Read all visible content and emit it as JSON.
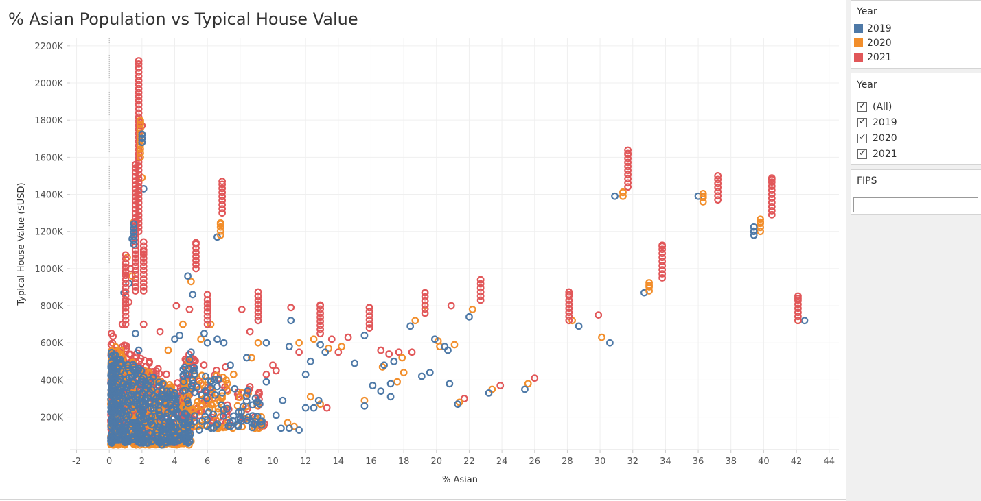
{
  "chart_data": {
    "type": "scatter",
    "title": "% Asian Population vs Typical House Value",
    "xlabel": "% Asian",
    "ylabel": "Typical House Value ($USD)",
    "xlim": [
      -2.4,
      44.6
    ],
    "ylim": [
      25000,
      2240000
    ],
    "x_ticks": [
      -2,
      0,
      2,
      4,
      6,
      8,
      10,
      12,
      14,
      16,
      18,
      20,
      22,
      24,
      26,
      28,
      30,
      32,
      34,
      36,
      38,
      40,
      42,
      44
    ],
    "y_ticks": [
      200000,
      400000,
      600000,
      800000,
      1000000,
      1200000,
      1400000,
      1600000,
      1800000,
      2000000,
      2200000
    ],
    "y_tick_labels": [
      "200K",
      "400K",
      "600K",
      "800K",
      "1000K",
      "1200K",
      "1400K",
      "1600K",
      "1800K",
      "2000K",
      "2200K"
    ],
    "grid": true,
    "marker": "open-circle",
    "legend_position": "right",
    "series": [
      {
        "name": "2019",
        "color": "#4e79a7",
        "points": [
          [
            2.0,
            1720000
          ],
          [
            2.1,
            1430000
          ],
          [
            1.5,
            1240000
          ],
          [
            1.4,
            1160000
          ],
          [
            6.6,
            1170000
          ],
          [
            0.9,
            870000
          ],
          [
            1.2,
            920000
          ],
          [
            5.1,
            860000
          ],
          [
            4.8,
            960000
          ],
          [
            11.1,
            720000
          ],
          [
            9.1,
            720000
          ],
          [
            11.0,
            580000
          ],
          [
            9.6,
            600000
          ],
          [
            15.6,
            640000
          ],
          [
            18.4,
            690000
          ],
          [
            19.9,
            620000
          ],
          [
            20.5,
            580000
          ],
          [
            20.7,
            560000
          ],
          [
            22.0,
            740000
          ],
          [
            21.3,
            270000
          ],
          [
            23.2,
            330000
          ],
          [
            25.4,
            350000
          ],
          [
            16.1,
            370000
          ],
          [
            17.2,
            380000
          ],
          [
            17.2,
            310000
          ],
          [
            19.1,
            420000
          ],
          [
            19.6,
            440000
          ],
          [
            16.6,
            340000
          ],
          [
            15.6,
            260000
          ],
          [
            20.8,
            380000
          ],
          [
            28.7,
            690000
          ],
          [
            30.6,
            600000
          ],
          [
            30.9,
            1390000
          ],
          [
            32.7,
            870000
          ],
          [
            36.0,
            1390000
          ],
          [
            39.4,
            1200000
          ],
          [
            42.5,
            720000
          ],
          [
            9.0,
            280000
          ],
          [
            9.2,
            270000
          ],
          [
            9.6,
            390000
          ],
          [
            10.2,
            210000
          ],
          [
            10.6,
            290000
          ],
          [
            10.5,
            140000
          ],
          [
            11.0,
            140000
          ],
          [
            11.6,
            130000
          ],
          [
            12.0,
            250000
          ],
          [
            12.5,
            250000
          ],
          [
            12.0,
            430000
          ],
          [
            12.3,
            500000
          ],
          [
            12.9,
            590000
          ],
          [
            13.2,
            550000
          ],
          [
            12.8,
            290000
          ],
          [
            15.0,
            490000
          ],
          [
            16.8,
            480000
          ],
          [
            17.4,
            500000
          ],
          [
            5.0,
            550000
          ],
          [
            5.8,
            650000
          ],
          [
            6.0,
            600000
          ],
          [
            6.6,
            620000
          ],
          [
            7.0,
            600000
          ],
          [
            4.0,
            620000
          ],
          [
            4.3,
            640000
          ],
          [
            4.9,
            510000
          ],
          [
            7.4,
            480000
          ],
          [
            8.4,
            520000
          ],
          [
            2.0,
            1700000
          ],
          [
            1.6,
            650000
          ],
          [
            1.8,
            560000
          ],
          [
            8.1,
            180000
          ],
          [
            8.5,
            200000
          ],
          [
            8.7,
            170000
          ],
          [
            7.4,
            150000
          ],
          [
            7.9,
            150000
          ],
          [
            5.5,
            130000
          ],
          [
            3.2,
            50000
          ],
          [
            0.6,
            170000
          ]
        ]
      },
      {
        "name": "2020",
        "color": "#f28e2b",
        "points": [
          [
            1.9,
            1790000
          ],
          [
            2.0,
            1490000
          ],
          [
            1.5,
            1250000
          ],
          [
            6.8,
            1240000
          ],
          [
            5.0,
            930000
          ],
          [
            1.4,
            960000
          ],
          [
            18.7,
            720000
          ],
          [
            19.3,
            800000
          ],
          [
            20.1,
            610000
          ],
          [
            20.2,
            580000
          ],
          [
            21.1,
            590000
          ],
          [
            22.2,
            780000
          ],
          [
            21.4,
            280000
          ],
          [
            23.4,
            350000
          ],
          [
            25.6,
            380000
          ],
          [
            28.3,
            720000
          ],
          [
            30.1,
            630000
          ],
          [
            31.4,
            1410000
          ],
          [
            33.0,
            910000
          ],
          [
            36.3,
            1390000
          ],
          [
            39.8,
            1250000
          ],
          [
            42.1,
            720000
          ],
          [
            16.7,
            470000
          ],
          [
            17.9,
            520000
          ],
          [
            18.0,
            440000
          ],
          [
            17.6,
            390000
          ],
          [
            15.6,
            290000
          ],
          [
            11.6,
            600000
          ],
          [
            12.5,
            620000
          ],
          [
            13.4,
            570000
          ],
          [
            14.2,
            580000
          ],
          [
            9.1,
            600000
          ],
          [
            8.7,
            520000
          ],
          [
            7.6,
            430000
          ],
          [
            6.2,
            700000
          ],
          [
            5.6,
            620000
          ],
          [
            4.5,
            700000
          ],
          [
            3.6,
            560000
          ],
          [
            10.9,
            170000
          ],
          [
            11.3,
            150000
          ],
          [
            12.9,
            270000
          ],
          [
            12.3,
            310000
          ],
          [
            1.1,
            1060000
          ]
        ]
      },
      {
        "name": "2021",
        "color": "#e15759",
        "points": [
          [
            1.8,
            2120000
          ],
          [
            2.0,
            1770000
          ],
          [
            1.6,
            1560000
          ],
          [
            2.1,
            1090000
          ],
          [
            6.9,
            1470000
          ],
          [
            5.3,
            1140000
          ],
          [
            6.0,
            860000
          ],
          [
            9.1,
            850000
          ],
          [
            11.1,
            790000
          ],
          [
            12.9,
            800000
          ],
          [
            15.9,
            790000
          ],
          [
            19.3,
            870000
          ],
          [
            20.9,
            800000
          ],
          [
            22.7,
            940000
          ],
          [
            26.0,
            410000
          ],
          [
            28.1,
            860000
          ],
          [
            29.9,
            750000
          ],
          [
            31.7,
            1620000
          ],
          [
            33.8,
            1120000
          ],
          [
            37.2,
            1500000
          ],
          [
            40.5,
            1480000
          ],
          [
            42.1,
            840000
          ],
          [
            17.7,
            550000
          ],
          [
            18.5,
            550000
          ],
          [
            14.6,
            630000
          ],
          [
            13.6,
            620000
          ],
          [
            10.2,
            450000
          ],
          [
            9.6,
            430000
          ],
          [
            3.1,
            660000
          ],
          [
            4.1,
            800000
          ],
          [
            4.9,
            780000
          ],
          [
            8.1,
            780000
          ],
          [
            10.0,
            480000
          ],
          [
            14.0,
            550000
          ],
          [
            16.6,
            560000
          ],
          [
            1.0,
            980000
          ],
          [
            1.3,
            1000000
          ],
          [
            1.6,
            880000
          ],
          [
            0.8,
            700000
          ],
          [
            2.1,
            700000
          ],
          [
            13.3,
            250000
          ],
          [
            23.9,
            370000
          ],
          [
            21.7,
            300000
          ],
          [
            17.1,
            540000
          ],
          [
            8.6,
            660000
          ],
          [
            7.1,
            470000
          ],
          [
            11.6,
            550000
          ],
          [
            1.2,
            820000
          ]
        ]
      }
    ],
    "clusters": [
      {
        "series": "2021",
        "x": [
          0.1,
          5.0
        ],
        "y": [
          60000,
          660000
        ],
        "n": 420
      },
      {
        "series": "2020",
        "x": [
          0.1,
          5.0
        ],
        "y": [
          50000,
          600000
        ],
        "n": 420
      },
      {
        "series": "2019",
        "x": [
          0.1,
          5.0
        ],
        "y": [
          60000,
          560000
        ],
        "n": 460
      },
      {
        "series": "2021",
        "x": [
          4.5,
          9.5
        ],
        "y": [
          150000,
          560000
        ],
        "n": 90
      },
      {
        "series": "2020",
        "x": [
          4.5,
          9.5
        ],
        "y": [
          140000,
          520000
        ],
        "n": 90
      },
      {
        "series": "2019",
        "x": [
          4.5,
          9.5
        ],
        "y": [
          140000,
          500000
        ],
        "n": 90
      }
    ]
  },
  "sidebar": {
    "legend": {
      "title": "Year",
      "items": [
        {
          "label": "2019",
          "color": "#4e79a7"
        },
        {
          "label": "2020",
          "color": "#f28e2b"
        },
        {
          "label": "2021",
          "color": "#e15759"
        }
      ]
    },
    "filter": {
      "title": "Year",
      "options": [
        "(All)",
        "2019",
        "2020",
        "2021"
      ]
    },
    "fips": {
      "title": "FIPS",
      "value": ""
    }
  }
}
